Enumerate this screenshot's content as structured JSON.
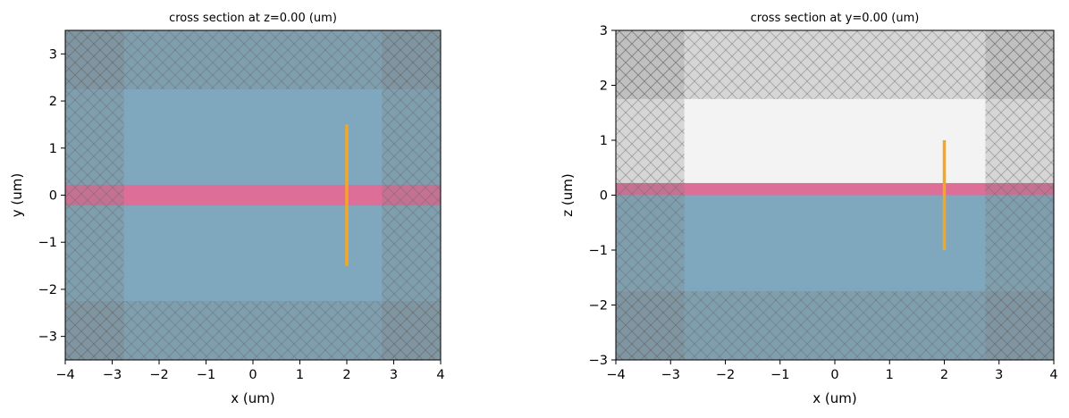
{
  "colors": {
    "substrate": "#7fa8be",
    "waveguide": "#dc6e98",
    "air": "#f3f3f3",
    "source": "#f5a623",
    "pml_overlay": "#808080"
  },
  "chart_data": [
    {
      "type": "cross-section",
      "title": "cross section at z=0.00 (um)",
      "xlabel": "x (um)",
      "ylabel": "y (um)",
      "xlim": [
        -4,
        4
      ],
      "ylim": [
        -3.5,
        3.5
      ],
      "xticks": [
        -4,
        -3,
        -2,
        -1,
        0,
        1,
        2,
        3,
        4
      ],
      "yticks": [
        -3,
        -2,
        -1,
        0,
        1,
        2,
        3
      ],
      "xtick_labels": [
        "−4",
        "−3",
        "−2",
        "−1",
        "0",
        "1",
        "2",
        "3",
        "4"
      ],
      "ytick_labels": [
        "−3",
        "−2",
        "−1",
        "0",
        "1",
        "2",
        "3"
      ],
      "regions": [
        {
          "kind": "background",
          "color": "substrate",
          "x": [
            -4,
            4
          ],
          "y": [
            -3.5,
            3.5
          ]
        },
        {
          "kind": "waveguide",
          "color": "waveguide",
          "x": [
            -4,
            4
          ],
          "y": [
            -0.22,
            0.22
          ]
        }
      ],
      "pml_x": 1.25,
      "pml_y": 1.25,
      "source": {
        "x": [
          2,
          2
        ],
        "y": [
          -1.5,
          1.5
        ]
      }
    },
    {
      "type": "cross-section",
      "title": "cross section at y=0.00 (um)",
      "xlabel": "x (um)",
      "ylabel": "z (um)",
      "xlim": [
        -4,
        4
      ],
      "ylim": [
        -3,
        3
      ],
      "xticks": [
        -4,
        -3,
        -2,
        -1,
        0,
        1,
        2,
        3,
        4
      ],
      "yticks": [
        -3,
        -2,
        -1,
        0,
        1,
        2,
        3
      ],
      "xtick_labels": [
        "−4",
        "−3",
        "−2",
        "−1",
        "0",
        "1",
        "2",
        "3",
        "4"
      ],
      "ytick_labels": [
        "−3",
        "−2",
        "−1",
        "0",
        "1",
        "2",
        "3"
      ],
      "regions": [
        {
          "kind": "air",
          "color": "air",
          "x": [
            -4,
            4
          ],
          "y": [
            0,
            3
          ]
        },
        {
          "kind": "substrate",
          "color": "substrate",
          "x": [
            -4,
            4
          ],
          "y": [
            -3,
            0
          ]
        },
        {
          "kind": "waveguide",
          "color": "waveguide",
          "x": [
            -4,
            4
          ],
          "y": [
            0,
            0.22
          ]
        }
      ],
      "pml_x": 1.25,
      "pml_y": 1.25,
      "source": {
        "x": [
          2,
          2
        ],
        "y": [
          -1,
          1
        ]
      }
    }
  ]
}
